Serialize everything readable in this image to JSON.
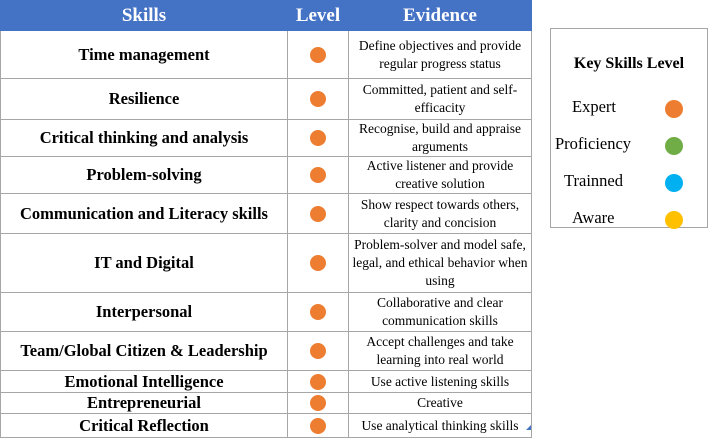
{
  "table": {
    "headers": {
      "skills": "Skills",
      "level": "Level",
      "evidence": "Evidence"
    },
    "rows": [
      {
        "skill": "Time management",
        "evidence": "Define objectives and provide regular progress status",
        "level_color": "#ed7d31"
      },
      {
        "skill": "Resilience",
        "evidence": "Committed, patient and self-efficacity",
        "level_color": "#ed7d31"
      },
      {
        "skill": "Critical thinking and analysis",
        "evidence": "Recognise, build and appraise arguments",
        "level_color": "#ed7d31"
      },
      {
        "skill": "Problem-solving",
        "evidence": "Active listener and provide creative solution",
        "level_color": "#ed7d31"
      },
      {
        "skill": "Communication and Literacy skills",
        "evidence": "Show respect towards others, clarity and concision",
        "level_color": "#ed7d31"
      },
      {
        "skill": "IT and Digital",
        "evidence": "Problem-solver and model safe, legal, and ethical behavior when using",
        "level_color": "#ed7d31"
      },
      {
        "skill": "Interpersonal",
        "evidence": "Collaborative and clear communication skills",
        "level_color": "#ed7d31"
      },
      {
        "skill": "Team/Global Citizen & Leadership",
        "evidence": "Accept challenges and take learning into real world",
        "level_color": "#ed7d31"
      },
      {
        "skill": "Emotional Intelligence",
        "evidence": "Use active listening skills",
        "level_color": "#ed7d31"
      },
      {
        "skill": "Entrepreneurial",
        "evidence": "Creative",
        "level_color": "#ed7d31"
      },
      {
        "skill": "Critical Reflection",
        "evidence": "Use analytical thinking skills",
        "level_color": "#ed7d31"
      }
    ]
  },
  "key": {
    "title": "Key Skills Level",
    "items": [
      {
        "label": "Expert",
        "color": "#ed7d31"
      },
      {
        "label": "Proficiency",
        "color": "#70ad47"
      },
      {
        "label": "Trainned",
        "color": "#00b0f0"
      },
      {
        "label": "Aware",
        "color": "#ffc000"
      }
    ]
  }
}
